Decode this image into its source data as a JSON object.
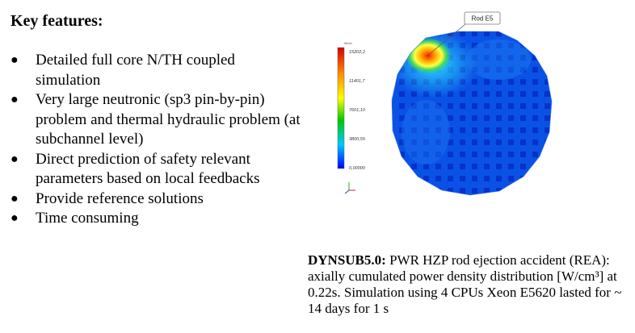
{
  "heading": "Key features:",
  "features": [
    {
      "text": "Detailed full core N/TH coupled simulation"
    },
    {
      "text": "Very large neutronic  (sp3 pin-by-pin) problem and thermal hydraulic problem (at subchannel level)"
    },
    {
      "text": "Direct prediction of safety relevant parameters based on local feedbacks"
    },
    {
      "text": "Provide reference solutions"
    },
    {
      "text": "Time consuming"
    }
  ],
  "figure": {
    "rod_label": "Rod E5",
    "colorbar": {
      "title": "W/cm³",
      "ticks": [
        "15202,2",
        "11401,7",
        "7601,10",
        "3800,55",
        "0,00000"
      ]
    }
  },
  "caption": {
    "bold": "DYNSUB5.0:",
    "text": " PWR HZP rod ejection accident (REA): axially cumulated power density distribution [W/cm³] at 0.22s. Simulation using 4 CPUs Xeon E5620 lasted for ~ 14 days for 1 s"
  }
}
